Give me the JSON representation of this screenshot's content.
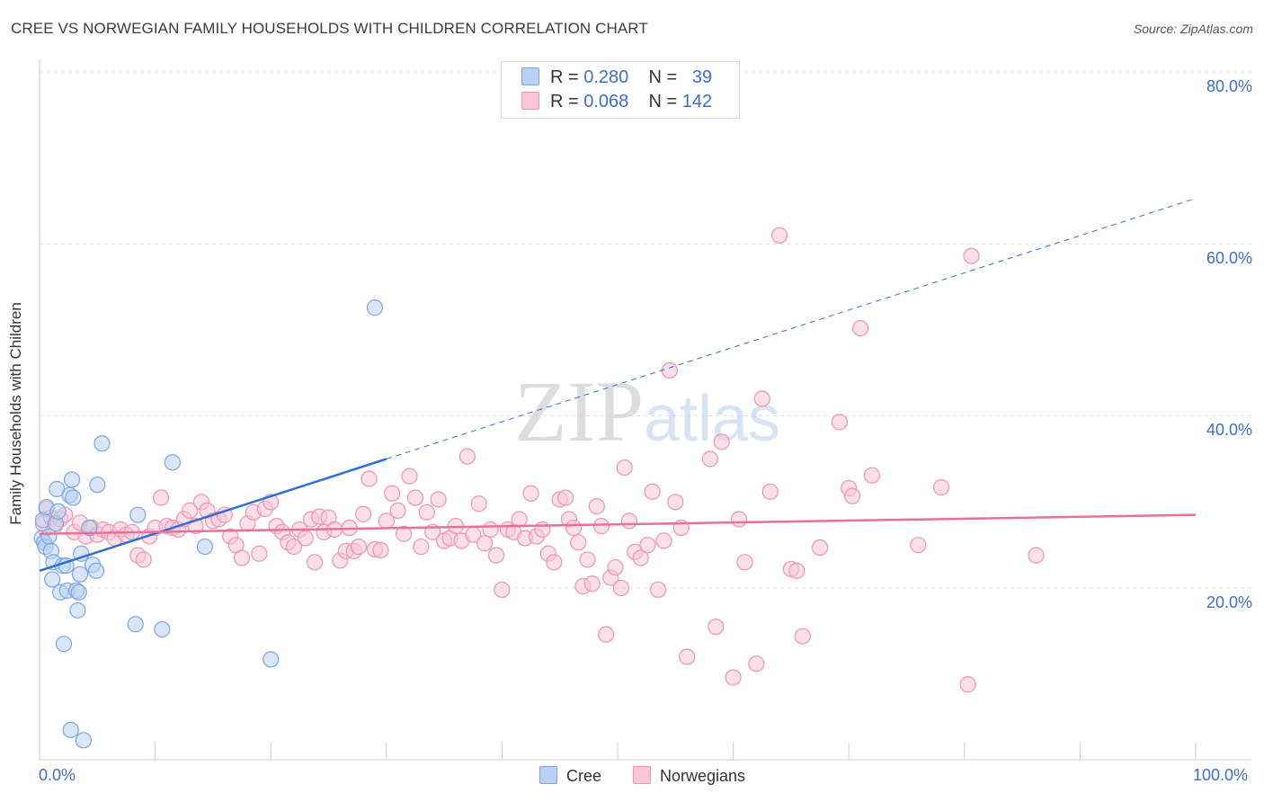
{
  "title": "CREE VS NORWEGIAN FAMILY HOUSEHOLDS WITH CHILDREN CORRELATION CHART",
  "source": "Source: ZipAtlas.com",
  "watermark": "ZIPatlas",
  "legend": {
    "rows": [
      {
        "r_label": "R =",
        "r_value": "0.280",
        "n_label": "N =",
        "n_value": "39"
      },
      {
        "r_label": "R =",
        "r_value": "0.068",
        "n_label": "N =",
        "n_value": "142"
      }
    ]
  },
  "bottom_legend": {
    "cree": "Cree",
    "norwegians": "Norwegians"
  },
  "colors": {
    "cree_fill": "#b9d1f3",
    "cree_stroke": "#7aa6e0",
    "cree_line": "#2f6fd6",
    "nor_fill": "#f8c6d6",
    "nor_stroke": "#ee94b2",
    "nor_line": "#e8709a",
    "grid": "#dddddd",
    "axis_text": "#3b6ecf"
  },
  "chart_data": {
    "type": "scatter",
    "title": "CREE VS NORWEGIAN FAMILY HOUSEHOLDS WITH CHILDREN CORRELATION CHART",
    "xlabel": "",
    "ylabel": "Family Households with Children",
    "xlim": [
      0,
      100
    ],
    "ylim": [
      0,
      82
    ],
    "x_tick_labels": [
      "0.0%",
      "100.0%"
    ],
    "y_ticks": [
      20,
      40,
      60,
      80
    ],
    "y_tick_labels": [
      "20.0%",
      "40.0%",
      "60.0%",
      "80.0%"
    ],
    "series": [
      {
        "name": "Cree",
        "points": [
          [
            0.2,
            25.8
          ],
          [
            0.3,
            27.9
          ],
          [
            0.4,
            25.3
          ],
          [
            0.5,
            24.8
          ],
          [
            0.6,
            29.4
          ],
          [
            0.8,
            26.0
          ],
          [
            1.0,
            24.3
          ],
          [
            1.1,
            21.0
          ],
          [
            1.2,
            23.0
          ],
          [
            1.4,
            27.5
          ],
          [
            1.5,
            31.5
          ],
          [
            1.6,
            28.9
          ],
          [
            1.8,
            19.5
          ],
          [
            2.0,
            22.6
          ],
          [
            2.1,
            13.5
          ],
          [
            2.3,
            22.6
          ],
          [
            2.4,
            19.7
          ],
          [
            2.6,
            30.8
          ],
          [
            2.7,
            3.5
          ],
          [
            2.8,
            32.6
          ],
          [
            2.9,
            30.5
          ],
          [
            3.2,
            19.7
          ],
          [
            3.3,
            17.4
          ],
          [
            3.4,
            19.5
          ],
          [
            3.5,
            21.6
          ],
          [
            3.6,
            24.0
          ],
          [
            3.8,
            2.3
          ],
          [
            4.3,
            27.0
          ],
          [
            4.6,
            22.7
          ],
          [
            4.9,
            22.0
          ],
          [
            5.0,
            32.0
          ],
          [
            5.4,
            36.8
          ],
          [
            8.3,
            15.8
          ],
          [
            8.5,
            28.5
          ],
          [
            10.6,
            15.2
          ],
          [
            11.5,
            34.6
          ],
          [
            14.3,
            24.8
          ],
          [
            20.0,
            11.7
          ],
          [
            29.0,
            52.6
          ]
        ]
      },
      {
        "name": "Norwegians",
        "points": [
          [
            0.3,
            27.5
          ],
          [
            0.6,
            29.2
          ],
          [
            1.0,
            28.2
          ],
          [
            1.3,
            27.2
          ],
          [
            1.8,
            28.0
          ],
          [
            2.2,
            28.5
          ],
          [
            3.0,
            26.5
          ],
          [
            3.5,
            27.6
          ],
          [
            4.0,
            26.0
          ],
          [
            4.5,
            27.0
          ],
          [
            5.0,
            26.2
          ],
          [
            5.5,
            26.8
          ],
          [
            6.0,
            26.5
          ],
          [
            6.5,
            25.8
          ],
          [
            7.0,
            26.8
          ],
          [
            7.5,
            26.2
          ],
          [
            8.0,
            26.5
          ],
          [
            8.5,
            23.8
          ],
          [
            9.0,
            23.3
          ],
          [
            9.5,
            26.0
          ],
          [
            10.0,
            27.0
          ],
          [
            10.5,
            30.5
          ],
          [
            11.0,
            27.2
          ],
          [
            11.5,
            27.0
          ],
          [
            12.0,
            26.8
          ],
          [
            12.5,
            28.0
          ],
          [
            13.0,
            29.0
          ],
          [
            13.5,
            27.2
          ],
          [
            14.0,
            30.0
          ],
          [
            14.5,
            29.0
          ],
          [
            15.0,
            27.8
          ],
          [
            15.5,
            28.0
          ],
          [
            16.0,
            28.5
          ],
          [
            16.5,
            26.0
          ],
          [
            17.0,
            25.0
          ],
          [
            17.5,
            23.5
          ],
          [
            18.0,
            27.5
          ],
          [
            18.5,
            28.8
          ],
          [
            19.0,
            24.0
          ],
          [
            19.5,
            29.2
          ],
          [
            20.0,
            30.0
          ],
          [
            20.5,
            27.2
          ],
          [
            21.0,
            26.5
          ],
          [
            21.5,
            25.3
          ],
          [
            22.0,
            24.8
          ],
          [
            22.5,
            26.8
          ],
          [
            23.0,
            25.8
          ],
          [
            23.5,
            28.0
          ],
          [
            23.8,
            23.0
          ],
          [
            24.2,
            28.3
          ],
          [
            24.6,
            26.5
          ],
          [
            25.0,
            28.2
          ],
          [
            25.5,
            26.8
          ],
          [
            26.0,
            23.2
          ],
          [
            26.5,
            24.3
          ],
          [
            26.8,
            27.0
          ],
          [
            27.2,
            24.3
          ],
          [
            27.6,
            24.8
          ],
          [
            28.0,
            28.6
          ],
          [
            28.5,
            32.7
          ],
          [
            29.0,
            24.5
          ],
          [
            29.5,
            24.4
          ],
          [
            30.0,
            27.8
          ],
          [
            30.5,
            31.0
          ],
          [
            31.0,
            29.0
          ],
          [
            31.5,
            26.3
          ],
          [
            32.0,
            33.0
          ],
          [
            32.5,
            30.5
          ],
          [
            33.0,
            24.8
          ],
          [
            33.5,
            28.8
          ],
          [
            34.0,
            26.5
          ],
          [
            34.5,
            30.3
          ],
          [
            35.0,
            25.5
          ],
          [
            35.5,
            25.8
          ],
          [
            36.0,
            27.2
          ],
          [
            36.5,
            25.5
          ],
          [
            37.0,
            35.3
          ],
          [
            37.5,
            26.2
          ],
          [
            38.0,
            29.8
          ],
          [
            38.5,
            25.2
          ],
          [
            39.0,
            26.8
          ],
          [
            39.5,
            23.8
          ],
          [
            40.0,
            19.8
          ],
          [
            40.5,
            26.8
          ],
          [
            41.0,
            26.5
          ],
          [
            41.5,
            28.0
          ],
          [
            42.0,
            25.8
          ],
          [
            42.5,
            31.0
          ],
          [
            43.0,
            26.0
          ],
          [
            43.5,
            26.8
          ],
          [
            44.0,
            24.0
          ],
          [
            44.5,
            23.0
          ],
          [
            45.0,
            30.3
          ],
          [
            45.5,
            30.5
          ],
          [
            45.8,
            28.0
          ],
          [
            46.2,
            27.0
          ],
          [
            46.6,
            25.3
          ],
          [
            47.0,
            20.2
          ],
          [
            47.4,
            23.3
          ],
          [
            47.8,
            20.5
          ],
          [
            48.2,
            29.5
          ],
          [
            48.6,
            27.2
          ],
          [
            49.0,
            14.6
          ],
          [
            49.4,
            21.2
          ],
          [
            49.8,
            22.4
          ],
          [
            50.3,
            20.0
          ],
          [
            50.6,
            34.0
          ],
          [
            51.0,
            27.8
          ],
          [
            51.5,
            24.2
          ],
          [
            52.0,
            23.5
          ],
          [
            52.6,
            25.0
          ],
          [
            53.0,
            31.2
          ],
          [
            53.5,
            19.8
          ],
          [
            54.0,
            25.5
          ],
          [
            54.5,
            45.3
          ],
          [
            55.0,
            30.0
          ],
          [
            55.5,
            27.0
          ],
          [
            56.0,
            12.0
          ],
          [
            58.0,
            35.0
          ],
          [
            58.5,
            15.5
          ],
          [
            59.0,
            37.0
          ],
          [
            60.0,
            9.6
          ],
          [
            60.5,
            28.0
          ],
          [
            61.0,
            23.0
          ],
          [
            62.0,
            11.2
          ],
          [
            62.5,
            42.0
          ],
          [
            63.2,
            31.2
          ],
          [
            64.0,
            61.0
          ],
          [
            65.0,
            22.2
          ],
          [
            65.5,
            22.0
          ],
          [
            66.0,
            14.4
          ],
          [
            67.5,
            24.7
          ],
          [
            69.2,
            39.3
          ],
          [
            70.0,
            31.6
          ],
          [
            70.3,
            30.7
          ],
          [
            71.0,
            50.2
          ],
          [
            72.0,
            33.1
          ],
          [
            76.0,
            25.0
          ],
          [
            78.0,
            31.7
          ],
          [
            80.3,
            8.8
          ],
          [
            80.6,
            58.6
          ],
          [
            86.2,
            23.8
          ]
        ]
      }
    ],
    "trendlines": [
      {
        "series": "Cree",
        "x0": 0,
        "y0": 22.0,
        "x1": 30,
        "y1": 35.0,
        "style": "solid"
      },
      {
        "series": "Cree",
        "x0": 30,
        "y0": 35.0,
        "x1": 100,
        "y1": 65.3,
        "style": "dashed"
      },
      {
        "series": "Norwegians",
        "x0": 0,
        "y0": 26.3,
        "x1": 100,
        "y1": 28.5,
        "style": "solid"
      }
    ],
    "legend_position": "top-center",
    "grid": true
  }
}
